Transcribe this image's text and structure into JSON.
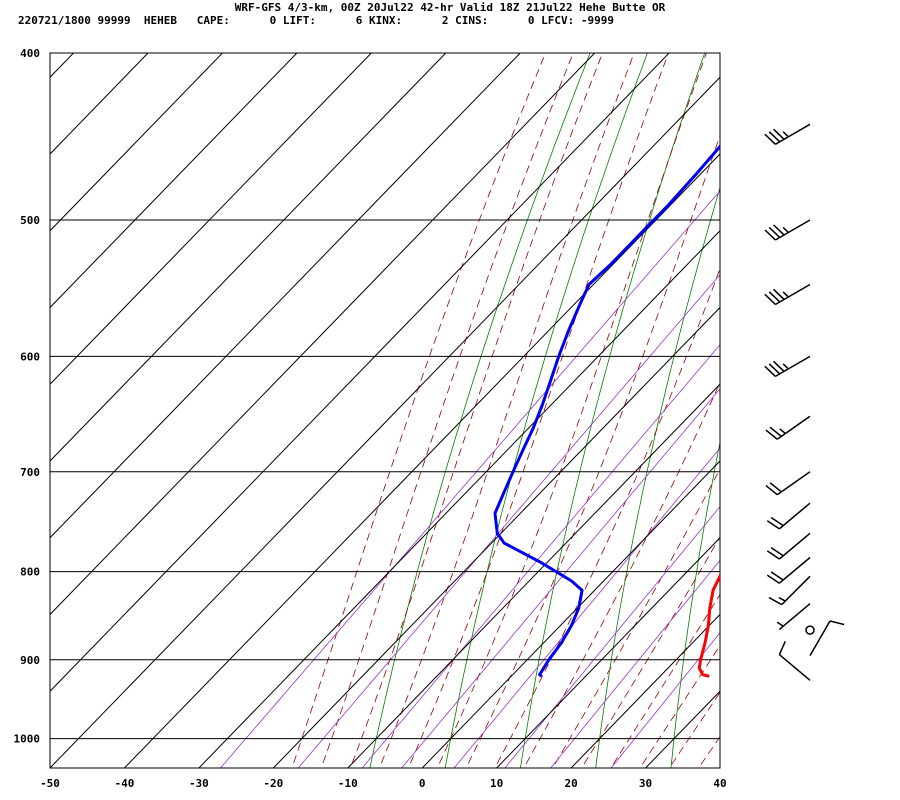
{
  "header": {
    "line1": "WRF-GFS 4/3-km, 00Z 20Jul22 42-hr Valid 18Z 21Jul22 Hehe Butte OR",
    "line2": "220721/1800 99999  HEHEB   CAPE:      0 LIFT:      6 KINX:      2 CINS:      0 LFCV: -9999"
  },
  "chart_data": {
    "type": "line",
    "title": "",
    "xlabel": "",
    "ylabel": "",
    "xlim": [
      -50,
      40
    ],
    "ylim": [
      1040,
      400
    ],
    "y_scale": "log-pressure",
    "x_ticks": [
      "-50",
      "-40",
      "-30",
      "-20",
      "-10",
      "0",
      "10",
      "20",
      "30",
      "40"
    ],
    "y_ticks": [
      "400",
      "500",
      "600",
      "700",
      "800",
      "900",
      "1000"
    ],
    "grid": true,
    "colors": {
      "temperature": "#ff0000",
      "dewpoint": "#0000ee",
      "dry_adiabat": "#008000",
      "moist_adiabat": "#990000",
      "mixing_ratio": "#9933cc",
      "wind_barb": "#000000"
    },
    "series": [
      {
        "key": "temperature",
        "pressure": [
          920,
          918,
          910,
          900,
          880,
          860,
          840,
          820,
          800,
          780,
          760,
          740,
          720,
          700,
          680,
          660,
          640,
          620,
          600,
          580,
          560,
          540,
          520,
          500,
          480,
          460,
          440
        ],
        "values": [
          26.6,
          25.5,
          24.2,
          23.3,
          21.7,
          19.9,
          17.8,
          15.9,
          14.7,
          13.8,
          12.6,
          11.0,
          9.4,
          7.7,
          5.8,
          3.8,
          1.6,
          -0.3,
          -2.3,
          -4.5,
          -6.7,
          -9.0,
          -11.3,
          -13.6,
          -15.7,
          -17.8,
          -20.0
        ]
      },
      {
        "key": "dewpoint",
        "pressure": [
          920,
          918,
          910,
          900,
          880,
          860,
          840,
          820,
          810,
          790,
          770,
          760,
          740,
          720,
          700,
          680,
          660,
          640,
          620,
          600,
          580,
          560,
          545,
          530,
          510,
          490,
          470,
          440
        ],
        "values": [
          4.1,
          3.6,
          3.3,
          2.9,
          2.4,
          1.5,
          0.2,
          -1.7,
          -4.3,
          -10.9,
          -18.3,
          -20.5,
          -23.4,
          -24.9,
          -26.4,
          -27.9,
          -29.4,
          -31.2,
          -33.2,
          -35.3,
          -37.3,
          -39.2,
          -40.6,
          -40.3,
          -40.3,
          -40.3,
          -40.6,
          -41.3
        ]
      }
    ],
    "wind_barbs": [
      {
        "pressure": 440,
        "dir": 240,
        "speed": 35
      },
      {
        "pressure": 500,
        "dir": 240,
        "speed": 35
      },
      {
        "pressure": 545,
        "dir": 240,
        "speed": 35
      },
      {
        "pressure": 600,
        "dir": 240,
        "speed": 35
      },
      {
        "pressure": 650,
        "dir": 235,
        "speed": 25
      },
      {
        "pressure": 700,
        "dir": 235,
        "speed": 20
      },
      {
        "pressure": 730,
        "dir": 230,
        "speed": 20
      },
      {
        "pressure": 760,
        "dir": 230,
        "speed": 20
      },
      {
        "pressure": 785,
        "dir": 230,
        "speed": 20
      },
      {
        "pressure": 805,
        "dir": 225,
        "speed": 15
      },
      {
        "pressure": 835,
        "dir": 230,
        "speed": 5
      },
      {
        "pressure": 865,
        "dir": 0,
        "speed": 0
      },
      {
        "pressure": 895,
        "dir": 30,
        "speed": 10
      },
      {
        "pressure": 925,
        "dir": 310,
        "speed": 10
      }
    ]
  }
}
